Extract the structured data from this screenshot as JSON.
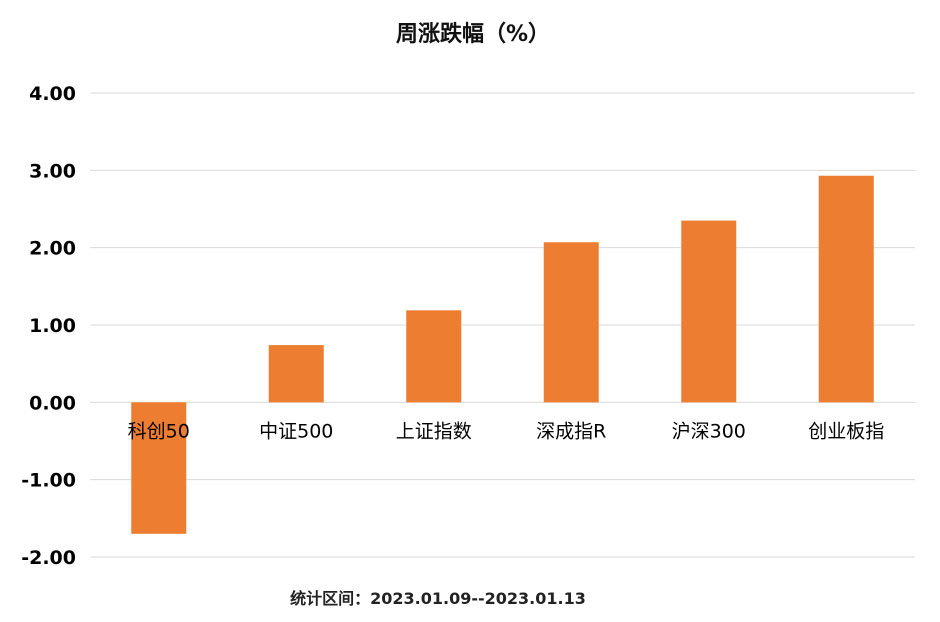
{
  "chart_data": {
    "type": "bar",
    "title": "周涨跌幅（%）",
    "categories": [
      "科创50",
      "中证500",
      "上证指数",
      "深成指R",
      "沪深300",
      "创业板指"
    ],
    "series": [
      {
        "values": [
          -1.7,
          0.74,
          1.19,
          2.07,
          2.35,
          2.93
        ]
      }
    ],
    "ylim": [
      -2.0,
      4.0
    ],
    "yticks": [
      "-2.00",
      "-1.00",
      "0.00",
      "1.00",
      "2.00",
      "3.00",
      "4.00"
    ],
    "grid": true,
    "bar_color": "#ED7D31",
    "gridline_color": "#D9D9D9"
  },
  "footnote": "统计区间：2023.01.09--2023.01.13"
}
